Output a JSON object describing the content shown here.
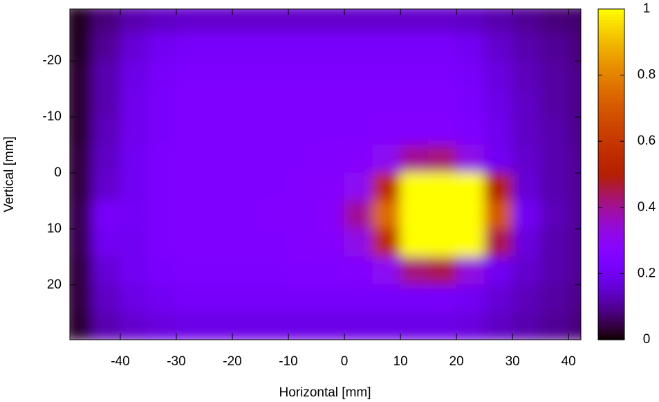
{
  "chart_data": {
    "type": "heatmap",
    "xlabel": "Horizontal [mm]",
    "ylabel": "Vertical [mm]",
    "x": [
      -47.5,
      -42.5,
      -37.5,
      -32.5,
      -27.5,
      -22.5,
      -17.5,
      -12.5,
      -7.5,
      -2.5,
      2.5,
      7.5,
      12.5,
      17.5,
      22.5,
      27.5,
      32.5,
      37.5,
      42.5
    ],
    "y": [
      -27.5,
      -22.5,
      -17.5,
      -12.5,
      -7.5,
      -2.5,
      2.5,
      7.5,
      12.5,
      17.5,
      22.5,
      27.5
    ],
    "z": [
      [
        0.02,
        0.08,
        0.12,
        0.14,
        0.15,
        0.15,
        0.15,
        0.15,
        0.15,
        0.15,
        0.15,
        0.15,
        0.15,
        0.15,
        0.14,
        0.12,
        0.1,
        0.08,
        0.07
      ],
      [
        0.02,
        0.1,
        0.16,
        0.2,
        0.22,
        0.22,
        0.22,
        0.22,
        0.22,
        0.22,
        0.22,
        0.22,
        0.22,
        0.22,
        0.2,
        0.15,
        0.12,
        0.1,
        0.08
      ],
      [
        0.03,
        0.12,
        0.18,
        0.22,
        0.24,
        0.24,
        0.24,
        0.24,
        0.24,
        0.24,
        0.24,
        0.24,
        0.24,
        0.24,
        0.22,
        0.17,
        0.13,
        0.11,
        0.09
      ],
      [
        0.03,
        0.12,
        0.19,
        0.23,
        0.25,
        0.25,
        0.25,
        0.25,
        0.25,
        0.25,
        0.25,
        0.25,
        0.25,
        0.25,
        0.23,
        0.18,
        0.14,
        0.11,
        0.09
      ],
      [
        0.03,
        0.13,
        0.19,
        0.23,
        0.25,
        0.25,
        0.25,
        0.25,
        0.25,
        0.25,
        0.25,
        0.26,
        0.26,
        0.26,
        0.24,
        0.19,
        0.14,
        0.12,
        0.09
      ],
      [
        0.04,
        0.14,
        0.2,
        0.24,
        0.25,
        0.25,
        0.25,
        0.25,
        0.25,
        0.26,
        0.27,
        0.3,
        0.4,
        0.42,
        0.32,
        0.2,
        0.15,
        0.12,
        0.1
      ],
      [
        0.04,
        0.15,
        0.2,
        0.24,
        0.25,
        0.25,
        0.25,
        0.25,
        0.26,
        0.27,
        0.3,
        0.55,
        1,
        1,
        1,
        0.5,
        0.16,
        0.12,
        0.1
      ],
      [
        0.05,
        0.22,
        0.21,
        0.24,
        0.25,
        0.25,
        0.25,
        0.26,
        0.26,
        0.28,
        0.4,
        0.75,
        1,
        1,
        1,
        0.7,
        0.2,
        0.13,
        0.1
      ],
      [
        0.05,
        0.2,
        0.2,
        0.24,
        0.25,
        0.25,
        0.25,
        0.25,
        0.26,
        0.27,
        0.32,
        0.55,
        1,
        1,
        1,
        0.45,
        0.17,
        0.12,
        0.1
      ],
      [
        0.04,
        0.16,
        0.2,
        0.23,
        0.24,
        0.24,
        0.24,
        0.24,
        0.25,
        0.25,
        0.26,
        0.3,
        0.42,
        0.45,
        0.33,
        0.2,
        0.15,
        0.12,
        0.1
      ],
      [
        0.04,
        0.14,
        0.18,
        0.2,
        0.22,
        0.22,
        0.22,
        0.22,
        0.22,
        0.22,
        0.22,
        0.22,
        0.22,
        0.22,
        0.2,
        0.16,
        0.13,
        0.11,
        0.09
      ],
      [
        0.03,
        0.12,
        0.15,
        0.17,
        0.18,
        0.18,
        0.18,
        0.18,
        0.18,
        0.18,
        0.18,
        0.18,
        0.18,
        0.18,
        0.17,
        0.14,
        0.12,
        0.1,
        0.08
      ]
    ],
    "xlim": [
      -49,
      42.2
    ],
    "ylim": [
      -29.3,
      29.8
    ],
    "y_reversed": true,
    "xticks": [
      -40,
      -30,
      -20,
      -10,
      0,
      10,
      20,
      30,
      40
    ],
    "yticks": [
      -20,
      -10,
      0,
      10,
      20
    ],
    "zlim": [
      0,
      1
    ],
    "zticks": [
      0,
      0.2,
      0.4,
      0.6,
      0.8,
      1
    ],
    "colormap": "gnuplot"
  }
}
